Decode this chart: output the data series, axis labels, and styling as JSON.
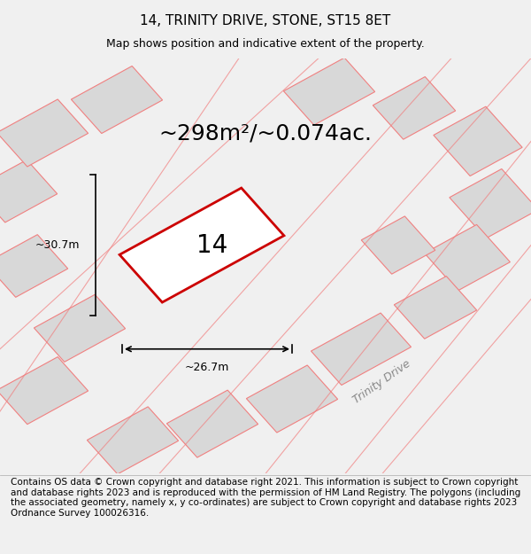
{
  "title_line1": "14, TRINITY DRIVE, STONE, ST15 8ET",
  "title_line2": "Map shows position and indicative extent of the property.",
  "area_text": "~298m²/~0.074ac.",
  "dim_width": "~26.7m",
  "dim_height": "~30.7m",
  "plot_label": "14",
  "footer_text": "Contains OS data © Crown copyright and database right 2021. This information is subject to Crown copyright and database rights 2023 and is reproduced with the permission of HM Land Registry. The polygons (including the associated geometry, namely x, y co-ordinates) are subject to Crown copyright and database rights 2023 Ordnance Survey 100026316.",
  "road_label": "Trinity Drive",
  "bg_color": "#f0f0f0",
  "map_bg": "#ffffff",
  "plot_fill": "#e8e8e8",
  "plot_edge": "#cc0000",
  "neighbor_fill": "#d8d8d8",
  "neighbor_edge": "#f08080",
  "road_color": "#f08080",
  "footer_bg": "#ffffff",
  "title_fontsize": 11,
  "subtitle_fontsize": 9,
  "area_fontsize": 18,
  "plot_label_fontsize": 20,
  "dim_fontsize": 9,
  "road_label_fontsize": 9,
  "footer_fontsize": 7.5
}
